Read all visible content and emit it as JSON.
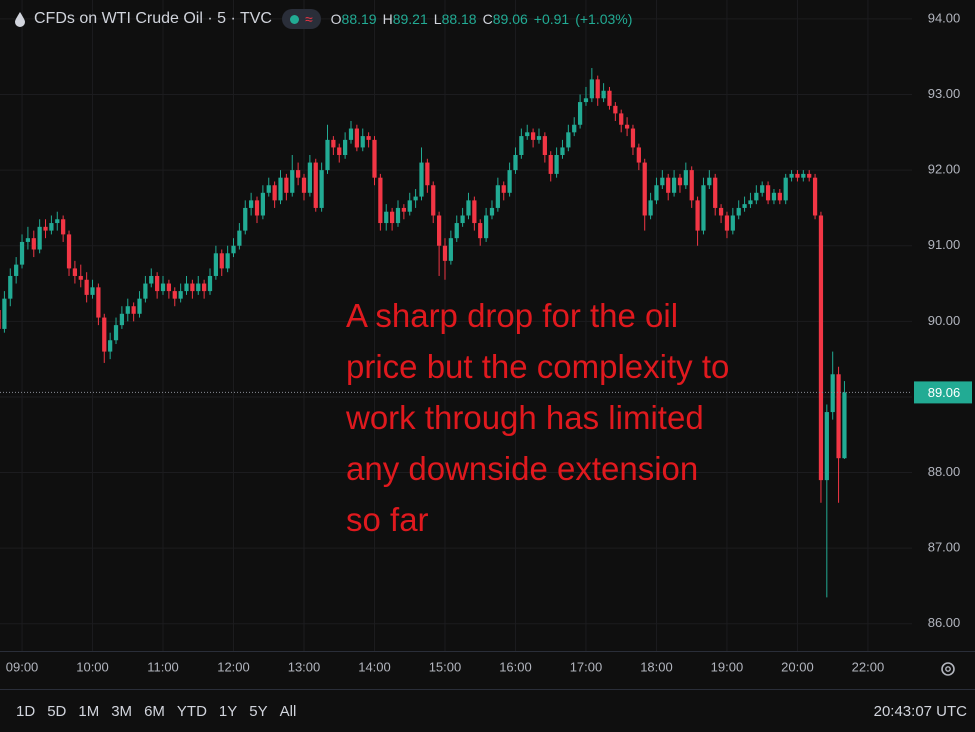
{
  "chart_data": {
    "type": "candlestick",
    "title": "CFDs on WTI Crude Oil · 5 · TVC",
    "ohlc_labels": [
      "O",
      "H",
      "L",
      "C"
    ],
    "change": "+0.91",
    "change_percent": "(+1.03%)",
    "annotation": [
      "A sharp drop for the oil",
      "price but the complexity to",
      "work through has limited",
      "any downside extension",
      "so far"
    ],
    "up_color": "#22ab94",
    "down_color": "#f23645",
    "grid": true,
    "ylim": [
      85.64,
      94.25
    ],
    "yticks": [
      {
        "value": 94,
        "label": "94.00"
      },
      {
        "value": 93,
        "label": "93.00"
      },
      {
        "value": 92,
        "label": "92.00"
      },
      {
        "value": 91,
        "label": "91.00"
      },
      {
        "value": 90,
        "label": "90.00"
      },
      {
        "value": 89,
        "label": "89.00"
      },
      {
        "value": 88,
        "label": "88.00"
      },
      {
        "value": 87,
        "label": "87.00"
      },
      {
        "value": 86,
        "label": "86.00"
      }
    ],
    "xlim": [
      0.25,
      155.5
    ],
    "xticks": [
      {
        "value": 4,
        "label": "09:00"
      },
      {
        "value": 16,
        "label": "10:00"
      },
      {
        "value": 28,
        "label": "11:00"
      },
      {
        "value": 40,
        "label": "12:00"
      },
      {
        "value": 52,
        "label": "13:00"
      },
      {
        "value": 64,
        "label": "14:00"
      },
      {
        "value": 76,
        "label": "15:00"
      },
      {
        "value": 88,
        "label": "16:00"
      },
      {
        "value": 100,
        "label": "17:00"
      },
      {
        "value": 112,
        "label": "18:00"
      },
      {
        "value": 124,
        "label": "19:00"
      },
      {
        "value": 136,
        "label": "20:00"
      },
      {
        "value": 148,
        "label": "22:00"
      }
    ],
    "ranges": [
      "1D",
      "5D",
      "1M",
      "3M",
      "6M",
      "YTD",
      "1Y",
      "5Y",
      "All"
    ],
    "clock": "20:43:07 UTC",
    "candles": [
      {
        "o": 90.15,
        "h": 90.25,
        "l": 89.8,
        "c": 89.9
      },
      {
        "o": 89.9,
        "h": 90.4,
        "l": 89.85,
        "c": 90.3
      },
      {
        "o": 90.3,
        "h": 90.7,
        "l": 90.2,
        "c": 90.6
      },
      {
        "o": 90.6,
        "h": 90.85,
        "l": 90.5,
        "c": 90.75
      },
      {
        "o": 90.75,
        "h": 91.15,
        "l": 90.7,
        "c": 91.05
      },
      {
        "o": 91.05,
        "h": 91.25,
        "l": 90.95,
        "c": 91.1
      },
      {
        "o": 91.1,
        "h": 91.2,
        "l": 90.85,
        "c": 90.95
      },
      {
        "o": 90.95,
        "h": 91.35,
        "l": 90.9,
        "c": 91.25
      },
      {
        "o": 91.25,
        "h": 91.35,
        "l": 91.1,
        "c": 91.2
      },
      {
        "o": 91.2,
        "h": 91.4,
        "l": 91.15,
        "c": 91.3
      },
      {
        "o": 91.3,
        "h": 91.45,
        "l": 91.2,
        "c": 91.35
      },
      {
        "o": 91.35,
        "h": 91.4,
        "l": 91.05,
        "c": 91.15
      },
      {
        "o": 91.15,
        "h": 91.2,
        "l": 90.6,
        "c": 90.7
      },
      {
        "o": 90.7,
        "h": 90.8,
        "l": 90.5,
        "c": 90.6
      },
      {
        "o": 90.6,
        "h": 90.75,
        "l": 90.45,
        "c": 90.55
      },
      {
        "o": 90.55,
        "h": 90.65,
        "l": 90.25,
        "c": 90.35
      },
      {
        "o": 90.35,
        "h": 90.55,
        "l": 90.3,
        "c": 90.45
      },
      {
        "o": 90.45,
        "h": 90.5,
        "l": 89.95,
        "c": 90.05
      },
      {
        "o": 90.05,
        "h": 90.1,
        "l": 89.45,
        "c": 89.6
      },
      {
        "o": 89.6,
        "h": 89.85,
        "l": 89.5,
        "c": 89.75
      },
      {
        "o": 89.75,
        "h": 90.05,
        "l": 89.7,
        "c": 89.95
      },
      {
        "o": 89.95,
        "h": 90.2,
        "l": 89.9,
        "c": 90.1
      },
      {
        "o": 90.1,
        "h": 90.3,
        "l": 90.0,
        "c": 90.2
      },
      {
        "o": 90.2,
        "h": 90.25,
        "l": 90.0,
        "c": 90.1
      },
      {
        "o": 90.1,
        "h": 90.4,
        "l": 90.05,
        "c": 90.3
      },
      {
        "o": 90.3,
        "h": 90.6,
        "l": 90.25,
        "c": 90.5
      },
      {
        "o": 90.5,
        "h": 90.7,
        "l": 90.45,
        "c": 90.6
      },
      {
        "o": 90.6,
        "h": 90.65,
        "l": 90.3,
        "c": 90.4
      },
      {
        "o": 90.4,
        "h": 90.6,
        "l": 90.35,
        "c": 90.5
      },
      {
        "o": 90.5,
        "h": 90.55,
        "l": 90.3,
        "c": 90.4
      },
      {
        "o": 90.4,
        "h": 90.45,
        "l": 90.2,
        "c": 90.3
      },
      {
        "o": 90.3,
        "h": 90.5,
        "l": 90.25,
        "c": 90.4
      },
      {
        "o": 90.4,
        "h": 90.6,
        "l": 90.35,
        "c": 90.5
      },
      {
        "o": 90.5,
        "h": 90.55,
        "l": 90.3,
        "c": 90.4
      },
      {
        "o": 90.4,
        "h": 90.6,
        "l": 90.35,
        "c": 90.5
      },
      {
        "o": 90.5,
        "h": 90.55,
        "l": 90.3,
        "c": 90.4
      },
      {
        "o": 90.4,
        "h": 90.7,
        "l": 90.35,
        "c": 90.6
      },
      {
        "o": 90.6,
        "h": 91.0,
        "l": 90.55,
        "c": 90.9
      },
      {
        "o": 90.9,
        "h": 90.95,
        "l": 90.6,
        "c": 90.7
      },
      {
        "o": 90.7,
        "h": 91.0,
        "l": 90.65,
        "c": 90.9
      },
      {
        "o": 90.9,
        "h": 91.1,
        "l": 90.85,
        "c": 91.0
      },
      {
        "o": 91.0,
        "h": 91.3,
        "l": 90.95,
        "c": 91.2
      },
      {
        "o": 91.2,
        "h": 91.6,
        "l": 91.15,
        "c": 91.5
      },
      {
        "o": 91.5,
        "h": 91.7,
        "l": 91.4,
        "c": 91.6
      },
      {
        "o": 91.6,
        "h": 91.65,
        "l": 91.3,
        "c": 91.4
      },
      {
        "o": 91.4,
        "h": 91.8,
        "l": 91.35,
        "c": 91.7
      },
      {
        "o": 91.7,
        "h": 91.9,
        "l": 91.65,
        "c": 91.8
      },
      {
        "o": 91.8,
        "h": 91.85,
        "l": 91.5,
        "c": 91.6
      },
      {
        "o": 91.6,
        "h": 92.0,
        "l": 91.55,
        "c": 91.9
      },
      {
        "o": 91.9,
        "h": 91.95,
        "l": 91.6,
        "c": 91.7
      },
      {
        "o": 91.7,
        "h": 92.2,
        "l": 91.65,
        "c": 92.0
      },
      {
        "o": 92.0,
        "h": 92.1,
        "l": 91.8,
        "c": 91.9
      },
      {
        "o": 91.9,
        "h": 91.95,
        "l": 91.6,
        "c": 91.7
      },
      {
        "o": 91.7,
        "h": 92.2,
        "l": 91.65,
        "c": 92.1
      },
      {
        "o": 92.1,
        "h": 92.15,
        "l": 91.45,
        "c": 91.5
      },
      {
        "o": 91.5,
        "h": 92.1,
        "l": 91.45,
        "c": 92.0
      },
      {
        "o": 92.0,
        "h": 92.6,
        "l": 91.95,
        "c": 92.4
      },
      {
        "o": 92.4,
        "h": 92.45,
        "l": 92.2,
        "c": 92.3
      },
      {
        "o": 92.3,
        "h": 92.35,
        "l": 92.1,
        "c": 92.2
      },
      {
        "o": 92.2,
        "h": 92.5,
        "l": 92.15,
        "c": 92.4
      },
      {
        "o": 92.4,
        "h": 92.65,
        "l": 92.35,
        "c": 92.55
      },
      {
        "o": 92.55,
        "h": 92.6,
        "l": 92.25,
        "c": 92.3
      },
      {
        "o": 92.3,
        "h": 92.55,
        "l": 92.25,
        "c": 92.45
      },
      {
        "o": 92.45,
        "h": 92.5,
        "l": 92.3,
        "c": 92.4
      },
      {
        "o": 92.4,
        "h": 92.45,
        "l": 91.8,
        "c": 91.9
      },
      {
        "o": 91.9,
        "h": 91.95,
        "l": 91.2,
        "c": 91.3
      },
      {
        "o": 91.3,
        "h": 91.55,
        "l": 91.2,
        "c": 91.45
      },
      {
        "o": 91.45,
        "h": 91.5,
        "l": 91.2,
        "c": 91.3
      },
      {
        "o": 91.3,
        "h": 91.6,
        "l": 91.25,
        "c": 91.5
      },
      {
        "o": 91.5,
        "h": 91.55,
        "l": 91.35,
        "c": 91.45
      },
      {
        "o": 91.45,
        "h": 91.7,
        "l": 91.4,
        "c": 91.6
      },
      {
        "o": 91.6,
        "h": 91.75,
        "l": 91.5,
        "c": 91.65
      },
      {
        "o": 91.65,
        "h": 92.3,
        "l": 91.6,
        "c": 92.1
      },
      {
        "o": 92.1,
        "h": 92.15,
        "l": 91.7,
        "c": 91.8
      },
      {
        "o": 91.8,
        "h": 91.85,
        "l": 91.3,
        "c": 91.4
      },
      {
        "o": 91.4,
        "h": 91.45,
        "l": 90.6,
        "c": 91.0
      },
      {
        "o": 91.0,
        "h": 91.1,
        "l": 90.55,
        "c": 90.8
      },
      {
        "o": 90.8,
        "h": 91.2,
        "l": 90.75,
        "c": 91.1
      },
      {
        "o": 91.1,
        "h": 91.4,
        "l": 91.05,
        "c": 91.3
      },
      {
        "o": 91.3,
        "h": 91.5,
        "l": 91.25,
        "c": 91.4
      },
      {
        "o": 91.4,
        "h": 91.7,
        "l": 91.35,
        "c": 91.6
      },
      {
        "o": 91.6,
        "h": 91.65,
        "l": 91.2,
        "c": 91.3
      },
      {
        "o": 91.3,
        "h": 91.35,
        "l": 91.0,
        "c": 91.1
      },
      {
        "o": 91.1,
        "h": 91.5,
        "l": 91.05,
        "c": 91.4
      },
      {
        "o": 91.4,
        "h": 91.6,
        "l": 91.35,
        "c": 91.5
      },
      {
        "o": 91.5,
        "h": 91.9,
        "l": 91.45,
        "c": 91.8
      },
      {
        "o": 91.8,
        "h": 91.85,
        "l": 91.6,
        "c": 91.7
      },
      {
        "o": 91.7,
        "h": 92.1,
        "l": 91.65,
        "c": 92.0
      },
      {
        "o": 92.0,
        "h": 92.3,
        "l": 91.95,
        "c": 92.2
      },
      {
        "o": 92.2,
        "h": 92.55,
        "l": 92.15,
        "c": 92.45
      },
      {
        "o": 92.45,
        "h": 92.6,
        "l": 92.4,
        "c": 92.5
      },
      {
        "o": 92.5,
        "h": 92.55,
        "l": 92.3,
        "c": 92.4
      },
      {
        "o": 92.4,
        "h": 92.55,
        "l": 92.35,
        "c": 92.45
      },
      {
        "o": 92.45,
        "h": 92.5,
        "l": 92.1,
        "c": 92.2
      },
      {
        "o": 92.2,
        "h": 92.25,
        "l": 91.85,
        "c": 91.95
      },
      {
        "o": 91.95,
        "h": 92.3,
        "l": 91.9,
        "c": 92.2
      },
      {
        "o": 92.2,
        "h": 92.4,
        "l": 92.15,
        "c": 92.3
      },
      {
        "o": 92.3,
        "h": 92.6,
        "l": 92.25,
        "c": 92.5
      },
      {
        "o": 92.5,
        "h": 92.7,
        "l": 92.45,
        "c": 92.6
      },
      {
        "o": 92.6,
        "h": 93.0,
        "l": 92.55,
        "c": 92.9
      },
      {
        "o": 92.9,
        "h": 93.1,
        "l": 92.85,
        "c": 92.95
      },
      {
        "o": 92.95,
        "h": 93.35,
        "l": 92.9,
        "c": 93.2
      },
      {
        "o": 93.2,
        "h": 93.25,
        "l": 92.85,
        "c": 92.95
      },
      {
        "o": 92.95,
        "h": 93.15,
        "l": 92.9,
        "c": 93.05
      },
      {
        "o": 93.05,
        "h": 93.1,
        "l": 92.8,
        "c": 92.85
      },
      {
        "o": 92.85,
        "h": 92.9,
        "l": 92.65,
        "c": 92.75
      },
      {
        "o": 92.75,
        "h": 92.8,
        "l": 92.5,
        "c": 92.6
      },
      {
        "o": 92.6,
        "h": 92.7,
        "l": 92.45,
        "c": 92.55
      },
      {
        "o": 92.55,
        "h": 92.6,
        "l": 92.2,
        "c": 92.3
      },
      {
        "o": 92.3,
        "h": 92.35,
        "l": 92.0,
        "c": 92.1
      },
      {
        "o": 92.1,
        "h": 92.15,
        "l": 91.2,
        "c": 91.4
      },
      {
        "o": 91.4,
        "h": 91.7,
        "l": 91.35,
        "c": 91.6
      },
      {
        "o": 91.6,
        "h": 91.9,
        "l": 91.55,
        "c": 91.8
      },
      {
        "o": 91.8,
        "h": 92.0,
        "l": 91.75,
        "c": 91.9
      },
      {
        "o": 91.9,
        "h": 91.95,
        "l": 91.6,
        "c": 91.7
      },
      {
        "o": 91.7,
        "h": 92.0,
        "l": 91.65,
        "c": 91.9
      },
      {
        "o": 91.9,
        "h": 91.95,
        "l": 91.7,
        "c": 91.8
      },
      {
        "o": 91.8,
        "h": 92.1,
        "l": 91.75,
        "c": 92.0
      },
      {
        "o": 92.0,
        "h": 92.05,
        "l": 91.5,
        "c": 91.6
      },
      {
        "o": 91.6,
        "h": 91.65,
        "l": 91.0,
        "c": 91.2
      },
      {
        "o": 91.2,
        "h": 91.9,
        "l": 91.15,
        "c": 91.8
      },
      {
        "o": 91.8,
        "h": 92.0,
        "l": 91.75,
        "c": 91.9
      },
      {
        "o": 91.9,
        "h": 91.95,
        "l": 91.4,
        "c": 91.5
      },
      {
        "o": 91.5,
        "h": 91.55,
        "l": 91.3,
        "c": 91.4
      },
      {
        "o": 91.4,
        "h": 91.45,
        "l": 91.1,
        "c": 91.2
      },
      {
        "o": 91.2,
        "h": 91.5,
        "l": 91.15,
        "c": 91.4
      },
      {
        "o": 91.4,
        "h": 91.6,
        "l": 91.35,
        "c": 91.5
      },
      {
        "o": 91.5,
        "h": 91.65,
        "l": 91.45,
        "c": 91.55
      },
      {
        "o": 91.55,
        "h": 91.7,
        "l": 91.5,
        "c": 91.6
      },
      {
        "o": 91.6,
        "h": 91.8,
        "l": 91.55,
        "c": 91.7
      },
      {
        "o": 91.7,
        "h": 91.85,
        "l": 91.65,
        "c": 91.8
      },
      {
        "o": 91.8,
        "h": 91.85,
        "l": 91.55,
        "c": 91.6
      },
      {
        "o": 91.6,
        "h": 91.75,
        "l": 91.55,
        "c": 91.7
      },
      {
        "o": 91.7,
        "h": 91.75,
        "l": 91.55,
        "c": 91.6
      },
      {
        "o": 91.6,
        "h": 91.95,
        "l": 91.55,
        "c": 91.9
      },
      {
        "o": 91.9,
        "h": 92.0,
        "l": 91.85,
        "c": 91.95
      },
      {
        "o": 91.95,
        "h": 92.0,
        "l": 91.85,
        "c": 91.9
      },
      {
        "o": 91.9,
        "h": 92.0,
        "l": 91.85,
        "c": 91.95
      },
      {
        "o": 91.95,
        "h": 92.0,
        "l": 91.85,
        "c": 91.9
      },
      {
        "o": 91.9,
        "h": 91.95,
        "l": 91.35,
        "c": 91.4
      },
      {
        "o": 91.4,
        "h": 91.45,
        "l": 87.6,
        "c": 87.9
      },
      {
        "o": 87.9,
        "h": 88.9,
        "l": 86.35,
        "c": 88.8
      },
      {
        "o": 88.8,
        "h": 89.6,
        "l": 88.7,
        "c": 89.3
      },
      {
        "o": 89.3,
        "h": 89.4,
        "l": 87.6,
        "c": 88.19
      },
      {
        "o": 88.19,
        "h": 89.21,
        "l": 88.18,
        "c": 89.06
      }
    ]
  }
}
